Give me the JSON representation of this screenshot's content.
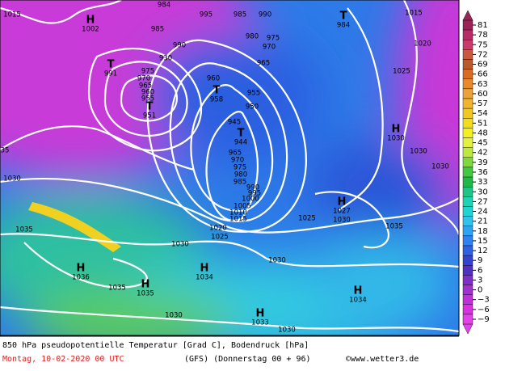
{
  "header": {
    "line1": "850 hPa pseudopotentielle Temperatur [Grad C], Bodendruck [hPa]",
    "date": "Montag, 10-02-2020  00 UTC",
    "model": "(GFS)  (Donnerstag 00 + 96)",
    "copyright": "©www.wetter3.de"
  },
  "isobar_labels": [
    "1015",
    "995",
    "984",
    "985",
    "990",
    "985",
    "990",
    "980",
    "975",
    "970",
    "930",
    "965",
    "975",
    "970",
    "965",
    "960",
    "955",
    "960",
    "955",
    "950",
    "945",
    "1015",
    "1020",
    "1025",
    "1030",
    "1030",
    "1035",
    "1030",
    "1035",
    "1030",
    "1025",
    "1020",
    "1015",
    "1010",
    "1005",
    "1000",
    "995",
    "990",
    "985",
    "980",
    "975",
    "970",
    "965",
    "1025",
    "1030",
    "1030",
    "1035",
    "1030",
    "1030",
    "35"
  ],
  "centers": [
    {
      "symbol": "H",
      "value": "1002"
    },
    {
      "symbol": "T",
      "value": "991"
    },
    {
      "symbol": "T",
      "value": "951"
    },
    {
      "symbol": "T",
      "value": "958"
    },
    {
      "symbol": "T",
      "value": "944"
    },
    {
      "symbol": "T",
      "value": "984"
    },
    {
      "symbol": "H",
      "value": "1030"
    },
    {
      "symbol": "H",
      "value": "1027"
    },
    {
      "symbol": "H",
      "value": "1036"
    },
    {
      "symbol": "H",
      "value": "1035"
    },
    {
      "symbol": "H",
      "value": "1034"
    },
    {
      "symbol": "H",
      "value": "1033"
    },
    {
      "symbol": "H",
      "value": "1034"
    }
  ],
  "colorbar": [
    {
      "label": "81",
      "color": "#9a2458"
    },
    {
      "label": "78",
      "color": "#b82c66"
    },
    {
      "label": "75",
      "color": "#c83c6a"
    },
    {
      "label": "72",
      "color": "#c8583e"
    },
    {
      "label": "69",
      "color": "#b85a2c"
    },
    {
      "label": "66",
      "color": "#d86c22"
    },
    {
      "label": "63",
      "color": "#e88a2c"
    },
    {
      "label": "60",
      "color": "#eaa23a"
    },
    {
      "label": "57",
      "color": "#f0b42e"
    },
    {
      "label": "54",
      "color": "#f0c820"
    },
    {
      "label": "51",
      "color": "#f2dc1e"
    },
    {
      "label": "48",
      "color": "#f4f020"
    },
    {
      "label": "45",
      "color": "#e4f040"
    },
    {
      "label": "42",
      "color": "#bce840"
    },
    {
      "label": "39",
      "color": "#7ed840"
    },
    {
      "label": "36",
      "color": "#44c844"
    },
    {
      "label": "33",
      "color": "#22b848"
    },
    {
      "label": "30",
      "color": "#20c488"
    },
    {
      "label": "27",
      "color": "#20d2b4"
    },
    {
      "label": "24",
      "color": "#20d4d4"
    },
    {
      "label": "21",
      "color": "#30c2ea"
    },
    {
      "label": "18",
      "color": "#30a2f2"
    },
    {
      "label": "15",
      "color": "#3082f0"
    },
    {
      "label": "12",
      "color": "#3062e0"
    },
    {
      "label": "9",
      "color": "#3444d0"
    },
    {
      "label": "6",
      "color": "#5032c2"
    },
    {
      "label": "3",
      "color": "#7e30c6"
    },
    {
      "label": "0",
      "color": "#a030d0"
    },
    {
      "label": "−3",
      "color": "#c030d8"
    },
    {
      "label": "−6",
      "color": "#d832e0"
    },
    {
      "label": "−9",
      "color": "#e044e8"
    }
  ]
}
